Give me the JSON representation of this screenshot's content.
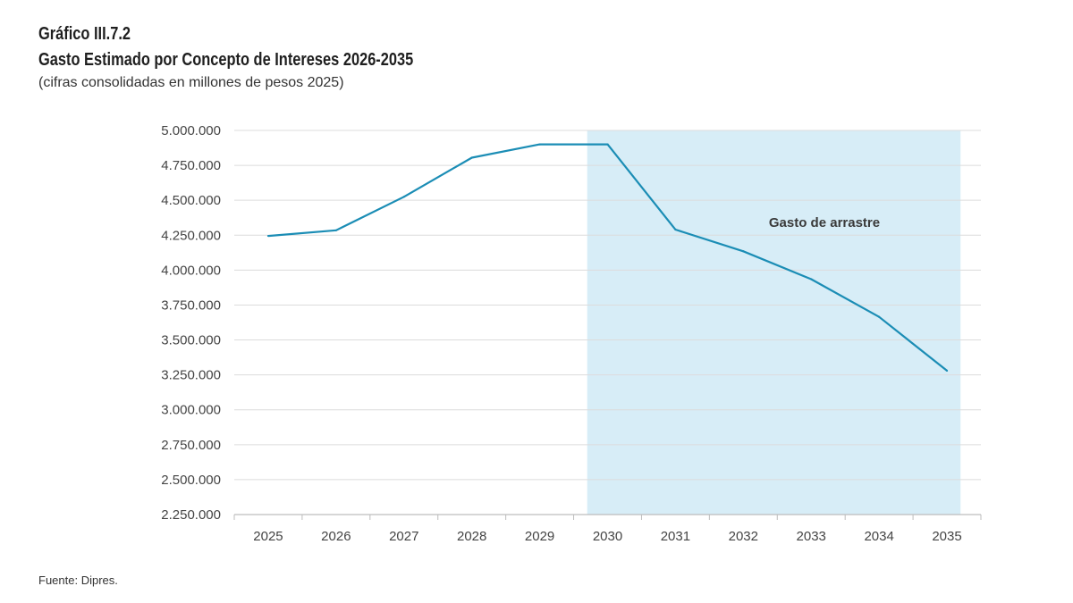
{
  "header": {
    "label": "Gráfico III.7.2",
    "title": "Gasto Estimado por Concepto de Intereses 2026-2035",
    "subtitle": "(cifras consolidadas en millones de pesos 2025)"
  },
  "source": "Fuente: Dipres.",
  "colors": {
    "line": "#1b8db5",
    "shade": "#d7edf7",
    "grid": "#dcdcdc",
    "axis": "#bdbdbd"
  },
  "chart_data": {
    "type": "line",
    "title": "Gasto Estimado por Concepto de Intereses 2026-2035",
    "subtitle": "(cifras consolidadas en millones de pesos 2025)",
    "xlabel": "",
    "ylabel": "",
    "categories": [
      "2025",
      "2026",
      "2027",
      "2028",
      "2029",
      "2030",
      "2031",
      "2032",
      "2033",
      "2034",
      "2035"
    ],
    "series": [
      {
        "values": [
          4245000,
          4285000,
          4525000,
          4805000,
          4900000,
          4900000,
          4290000,
          4135000,
          3935000,
          3665000,
          3280000
        ]
      }
    ],
    "ylim": [
      2250000,
      5000000
    ],
    "yticks": [
      2250000,
      2500000,
      2750000,
      3000000,
      3250000,
      3500000,
      3750000,
      4000000,
      4250000,
      4500000,
      4750000,
      5000000
    ],
    "ytick_labels": [
      "2.250.000",
      "2.500.000",
      "2.750.000",
      "3.000.000",
      "3.250.000",
      "3.500.000",
      "3.750.000",
      "4.000.000",
      "4.250.000",
      "4.500.000",
      "4.750.000",
      "5.000.000"
    ],
    "grid": true,
    "legend": "none",
    "shaded_region": {
      "x_start": "2029.7",
      "x_end": "2035.2",
      "label": "Gasto de arrastre"
    }
  }
}
